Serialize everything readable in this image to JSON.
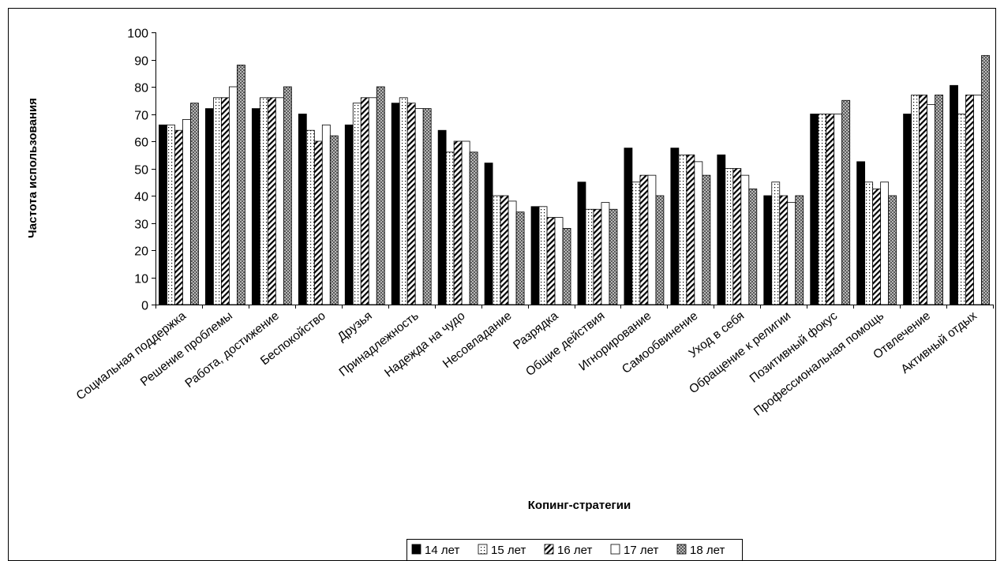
{
  "chart_data": {
    "type": "bar",
    "title": "",
    "xlabel": "Копинг-стратегии",
    "ylabel": "Частота использования",
    "ylim": [
      0,
      100
    ],
    "yticks": [
      0,
      10,
      20,
      30,
      40,
      50,
      60,
      70,
      80,
      90,
      100
    ],
    "grid": false,
    "legend_position": "bottom",
    "categories": [
      "Социальная поддержка",
      "Решение проблемы",
      "Работа, достижение",
      "Беспокойство",
      "Друзья",
      "Принадлежность",
      "Надежда на чудо",
      "Несовладание",
      "Разрядка",
      "Общие действия",
      "Игнорирование",
      "Самообвинение",
      "Уход в себя",
      "Обращение к религии",
      "Позитивный фокус",
      "Профессиональная помощь",
      "Отвлечение",
      "Активный отдых"
    ],
    "series": [
      {
        "name": "14 лет",
        "pattern": "solid-black",
        "values": [
          66,
          72,
          72,
          70,
          66,
          74,
          64,
          52,
          36,
          45,
          57.5,
          57.5,
          55,
          40,
          70,
          52.5,
          70,
          80.5
        ]
      },
      {
        "name": "15 лет",
        "pattern": "dotted",
        "values": [
          66,
          76,
          76,
          64,
          74,
          76,
          56,
          40,
          36,
          35,
          45,
          55,
          50,
          45,
          70,
          45,
          77,
          70
        ]
      },
      {
        "name": "16 лет",
        "pattern": "diagonal-stripes",
        "values": [
          64,
          76,
          76,
          60,
          76,
          74,
          60,
          40,
          32,
          35,
          47.5,
          55,
          50,
          40,
          70,
          42.5,
          77,
          77
        ]
      },
      {
        "name": "17 лет",
        "pattern": "white",
        "values": [
          68,
          80,
          76,
          66,
          76,
          72,
          60,
          38,
          32,
          37.5,
          47.5,
          52.5,
          47.5,
          37.5,
          70,
          45,
          73.5,
          77
        ]
      },
      {
        "name": "18 лет",
        "pattern": "crosshatch-grey",
        "values": [
          74,
          88,
          80,
          62,
          80,
          72,
          56,
          34,
          28,
          35,
          40,
          47.5,
          42.5,
          40,
          75,
          40,
          77,
          91.5
        ]
      }
    ]
  }
}
